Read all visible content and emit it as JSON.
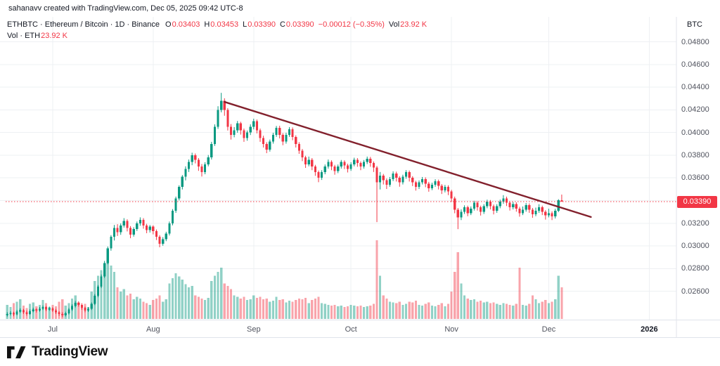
{
  "attribution": "sahanavv created with TradingView.com, Dec 05, 2025 09:42 UTC-8",
  "legend": {
    "title": "ETHBTC · Ethereum / Bitcoin · 1D · Binance",
    "ohlc": [
      {
        "label": "O",
        "value": "0.03403"
      },
      {
        "label": "H",
        "value": "0.03453"
      },
      {
        "label": "L",
        "value": "0.03390"
      },
      {
        "label": "C",
        "value": "0.03390"
      }
    ],
    "change": "−0.00012 (−0.35%)",
    "vol_label": "Vol",
    "vol_value": "23.92 K",
    "row2_label": "Vol · ETH",
    "row2_value": "23.92 K"
  },
  "price_axis": {
    "unit": "BTC"
  },
  "footer": {
    "brand": "TradingView"
  },
  "chart_data": {
    "type": "candlestick",
    "title": "ETHBTC · Ethereum / Bitcoin · 1D · Binance",
    "ylabel": "BTC",
    "grid": true,
    "price_scale": 1e-05,
    "y_min": 0.0235,
    "y_max": 0.0489,
    "total_slots": 206,
    "grid_prices": [
      0.048,
      0.046,
      0.044,
      0.042,
      0.04,
      0.038,
      0.036,
      0.034,
      0.032,
      0.03,
      0.028,
      0.026
    ],
    "axis_labels": [
      {
        "text": "0.04800",
        "price": 0.048
      },
      {
        "text": "0.04600",
        "price": 0.046
      },
      {
        "text": "0.04400",
        "price": 0.044
      },
      {
        "text": "0.04200",
        "price": 0.042
      },
      {
        "text": "0.04000",
        "price": 0.04
      },
      {
        "text": "0.03800",
        "price": 0.038
      },
      {
        "text": "0.03600",
        "price": 0.036
      },
      {
        "text": "0.03200",
        "price": 0.032
      },
      {
        "text": "0.03000",
        "price": 0.03
      },
      {
        "text": "0.02800",
        "price": 0.028
      },
      {
        "text": "0.02600",
        "price": 0.026
      }
    ],
    "x_labels": [
      {
        "label": "Jul",
        "index": 14
      },
      {
        "label": "Aug",
        "index": 45
      },
      {
        "label": "Sep",
        "index": 76
      },
      {
        "label": "Oct",
        "index": 106
      },
      {
        "label": "Nov",
        "index": 137
      },
      {
        "label": "Dec",
        "index": 167
      },
      {
        "label": "2026",
        "index": 198,
        "emph": true
      }
    ],
    "current_price": 0.0339,
    "current_price_label": "0.03390",
    "trendline": {
      "i1": 67,
      "p1": 0.0427,
      "i2": 180,
      "p2": 0.03255
    },
    "colors": {
      "up": "#089981",
      "down": "#f23645",
      "vol_opacity": 0.45,
      "trendline": "#82202c",
      "grid": "#eef0f3",
      "border": "#e0e3eb",
      "price_line": "#f23645",
      "badge_bg": "#f23645",
      "badge_text": "#ffffff"
    },
    "candles": [
      [
        2390,
        2415,
        2378,
        2400,
        18
      ],
      [
        2400,
        2425,
        2388,
        2410,
        15
      ],
      [
        2410,
        2420,
        2380,
        2395,
        20
      ],
      [
        2395,
        2435,
        2388,
        2420,
        22
      ],
      [
        2420,
        2450,
        2410,
        2435,
        25
      ],
      [
        2435,
        2445,
        2400,
        2415,
        17
      ],
      [
        2415,
        2430,
        2385,
        2400,
        14
      ],
      [
        2400,
        2440,
        2393,
        2425,
        19
      ],
      [
        2425,
        2455,
        2415,
        2440,
        21
      ],
      [
        2440,
        2450,
        2413,
        2430,
        16
      ],
      [
        2430,
        2462,
        2420,
        2445,
        18
      ],
      [
        2445,
        2475,
        2435,
        2460,
        24
      ],
      [
        2460,
        2470,
        2425,
        2440,
        20
      ],
      [
        2440,
        2465,
        2428,
        2450,
        15
      ],
      [
        2450,
        2460,
        2418,
        2430,
        18
      ],
      [
        2430,
        2445,
        2400,
        2415,
        16
      ],
      [
        2415,
        2425,
        2383,
        2400,
        22
      ],
      [
        2400,
        2415,
        2372,
        2390,
        25
      ],
      [
        2390,
        2420,
        2378,
        2405,
        17
      ],
      [
        2405,
        2452,
        2395,
        2440,
        20
      ],
      [
        2440,
        2485,
        2428,
        2470,
        26
      ],
      [
        2470,
        2515,
        2458,
        2500,
        30
      ],
      [
        2500,
        2512,
        2465,
        2480,
        21
      ],
      [
        2480,
        2495,
        2438,
        2455,
        18
      ],
      [
        2455,
        2465,
        2415,
        2430,
        19
      ],
      [
        2430,
        2460,
        2418,
        2445,
        15
      ],
      [
        2445,
        2502,
        2435,
        2490,
        35
      ],
      [
        2490,
        2575,
        2478,
        2560,
        48
      ],
      [
        2560,
        2655,
        2548,
        2640,
        55
      ],
      [
        2640,
        2748,
        2628,
        2730,
        62
      ],
      [
        2730,
        2868,
        2718,
        2850,
        70
      ],
      [
        2850,
        2995,
        2838,
        2980,
        75
      ],
      [
        2980,
        3095,
        2958,
        3080,
        68
      ],
      [
        3080,
        3185,
        3048,
        3160,
        60
      ],
      [
        3160,
        3192,
        3088,
        3120,
        40
      ],
      [
        3120,
        3198,
        3098,
        3180,
        35
      ],
      [
        3180,
        3245,
        3162,
        3220,
        38
      ],
      [
        3220,
        3235,
        3128,
        3160,
        30
      ],
      [
        3160,
        3175,
        3068,
        3100,
        32
      ],
      [
        3100,
        3165,
        3082,
        3150,
        25
      ],
      [
        3150,
        3215,
        3132,
        3200,
        28
      ],
      [
        3200,
        3252,
        3178,
        3230,
        26
      ],
      [
        3230,
        3245,
        3152,
        3180,
        22
      ],
      [
        3180,
        3195,
        3112,
        3140,
        20
      ],
      [
        3140,
        3185,
        3118,
        3170,
        18
      ],
      [
        3170,
        3182,
        3102,
        3130,
        24
      ],
      [
        3130,
        3145,
        3052,
        3080,
        26
      ],
      [
        3080,
        3095,
        2988,
        3020,
        30
      ],
      [
        3020,
        3078,
        3002,
        3060,
        22
      ],
      [
        3060,
        3125,
        3042,
        3110,
        25
      ],
      [
        3110,
        3215,
        3092,
        3200,
        45
      ],
      [
        3200,
        3325,
        3182,
        3310,
        52
      ],
      [
        3310,
        3435,
        3292,
        3420,
        58
      ],
      [
        3420,
        3535,
        3402,
        3520,
        54
      ],
      [
        3520,
        3625,
        3498,
        3610,
        50
      ],
      [
        3610,
        3702,
        3578,
        3680,
        44
      ],
      [
        3680,
        3762,
        3652,
        3740,
        40
      ],
      [
        3740,
        3822,
        3712,
        3800,
        42
      ],
      [
        3800,
        3815,
        3728,
        3760,
        30
      ],
      [
        3760,
        3775,
        3662,
        3700,
        28
      ],
      [
        3700,
        3722,
        3612,
        3650,
        26
      ],
      [
        3650,
        3738,
        3632,
        3720,
        24
      ],
      [
        3720,
        3802,
        3702,
        3780,
        27
      ],
      [
        3780,
        3918,
        3762,
        3900,
        48
      ],
      [
        3900,
        4072,
        3882,
        4050,
        55
      ],
      [
        4050,
        4232,
        4032,
        4200,
        60
      ],
      [
        4200,
        4350,
        4178,
        4280,
        65
      ],
      [
        4280,
        4302,
        4148,
        4200,
        45
      ],
      [
        4200,
        4215,
        4018,
        4050,
        42
      ],
      [
        4050,
        4075,
        3938,
        3980,
        38
      ],
      [
        3980,
        4048,
        3958,
        4020,
        30
      ],
      [
        4020,
        4102,
        3998,
        4080,
        28
      ],
      [
        4080,
        4095,
        3982,
        4020,
        26
      ],
      [
        4020,
        4035,
        3918,
        3950,
        28
      ],
      [
        3950,
        4018,
        3928,
        4000,
        24
      ],
      [
        4000,
        4072,
        3978,
        4050,
        25
      ],
      [
        4050,
        4122,
        4028,
        4100,
        30
      ],
      [
        4100,
        4115,
        3992,
        4020,
        27
      ],
      [
        4020,
        4035,
        3918,
        3950,
        28
      ],
      [
        3950,
        3972,
        3868,
        3900,
        25
      ],
      [
        3900,
        3915,
        3818,
        3850,
        26
      ],
      [
        3850,
        3938,
        3832,
        3920,
        22
      ],
      [
        3920,
        3998,
        3902,
        3980,
        23
      ],
      [
        3980,
        4058,
        3962,
        4040,
        28
      ],
      [
        4040,
        4060,
        3948,
        3980,
        24
      ],
      [
        3980,
        3995,
        3888,
        3920,
        25
      ],
      [
        3920,
        3998,
        3902,
        3980,
        21
      ],
      [
        3980,
        4048,
        3962,
        4030,
        23
      ],
      [
        4030,
        4045,
        3932,
        3960,
        22
      ],
      [
        3960,
        3975,
        3868,
        3900,
        24
      ],
      [
        3900,
        3915,
        3812,
        3840,
        26
      ],
      [
        3840,
        3855,
        3748,
        3780,
        25
      ],
      [
        3780,
        3795,
        3688,
        3720,
        27
      ],
      [
        3720,
        3788,
        3702,
        3760,
        20
      ],
      [
        3760,
        3775,
        3668,
        3700,
        24
      ],
      [
        3700,
        3715,
        3618,
        3650,
        26
      ],
      [
        3650,
        3665,
        3562,
        3600,
        28
      ],
      [
        3600,
        3668,
        3582,
        3650,
        20
      ],
      [
        3650,
        3718,
        3632,
        3700,
        19
      ],
      [
        3700,
        3762,
        3682,
        3740,
        18
      ],
      [
        3740,
        3755,
        3668,
        3700,
        17
      ],
      [
        3700,
        3715,
        3628,
        3660,
        18
      ],
      [
        3660,
        3718,
        3642,
        3700,
        16
      ],
      [
        3700,
        3758,
        3682,
        3740,
        17
      ],
      [
        3740,
        3755,
        3678,
        3710,
        15
      ],
      [
        3710,
        3725,
        3648,
        3680,
        16
      ],
      [
        3680,
        3738,
        3662,
        3720,
        18
      ],
      [
        3720,
        3778,
        3702,
        3760,
        17
      ],
      [
        3760,
        3775,
        3698,
        3730,
        16
      ],
      [
        3730,
        3745,
        3668,
        3700,
        17
      ],
      [
        3700,
        3758,
        3682,
        3740,
        15
      ],
      [
        3740,
        3788,
        3722,
        3770,
        16
      ],
      [
        3770,
        3785,
        3698,
        3730,
        17
      ],
      [
        3730,
        3745,
        3652,
        3690,
        19
      ],
      [
        3690,
        3705,
        3210,
        3560,
        100
      ],
      [
        3560,
        3652,
        3498,
        3620,
        55
      ],
      [
        3620,
        3635,
        3542,
        3580,
        30
      ],
      [
        3580,
        3595,
        3502,
        3540,
        26
      ],
      [
        3540,
        3608,
        3522,
        3590,
        22
      ],
      [
        3590,
        3658,
        3572,
        3640,
        21
      ],
      [
        3640,
        3655,
        3568,
        3600,
        20
      ],
      [
        3600,
        3615,
        3522,
        3560,
        22
      ],
      [
        3560,
        3628,
        3542,
        3610,
        18
      ],
      [
        3610,
        3668,
        3592,
        3650,
        19
      ],
      [
        3650,
        3665,
        3568,
        3600,
        22
      ],
      [
        3600,
        3615,
        3528,
        3560,
        21
      ],
      [
        3560,
        3575,
        3488,
        3520,
        23
      ],
      [
        3520,
        3578,
        3502,
        3560,
        18
      ],
      [
        3560,
        3608,
        3542,
        3590,
        17
      ],
      [
        3590,
        3605,
        3518,
        3550,
        19
      ],
      [
        3550,
        3565,
        3478,
        3510,
        21
      ],
      [
        3510,
        3558,
        3492,
        3540,
        17
      ],
      [
        3540,
        3588,
        3522,
        3570,
        16
      ],
      [
        3570,
        3585,
        3498,
        3530,
        18
      ],
      [
        3530,
        3545,
        3458,
        3490,
        20
      ],
      [
        3490,
        3538,
        3472,
        3520,
        16
      ],
      [
        3520,
        3535,
        3448,
        3480,
        19
      ],
      [
        3480,
        3495,
        3388,
        3420,
        35
      ],
      [
        3420,
        3435,
        3288,
        3320,
        60
      ],
      [
        3320,
        3335,
        3148,
        3250,
        85
      ],
      [
        3250,
        3322,
        3228,
        3300,
        45
      ],
      [
        3300,
        3358,
        3282,
        3340,
        30
      ],
      [
        3340,
        3355,
        3262,
        3290,
        26
      ],
      [
        3290,
        3348,
        3272,
        3330,
        24
      ],
      [
        3330,
        3398,
        3312,
        3380,
        25
      ],
      [
        3380,
        3395,
        3312,
        3340,
        22
      ],
      [
        3340,
        3355,
        3268,
        3300,
        23
      ],
      [
        3300,
        3368,
        3282,
        3350,
        21
      ],
      [
        3350,
        3408,
        3332,
        3390,
        22
      ],
      [
        3390,
        3405,
        3322,
        3350,
        20
      ],
      [
        3350,
        3365,
        3278,
        3310,
        21
      ],
      [
        3310,
        3368,
        3292,
        3350,
        19
      ],
      [
        3350,
        3408,
        3332,
        3390,
        18
      ],
      [
        3390,
        3448,
        3372,
        3420,
        20
      ],
      [
        3420,
        3435,
        3352,
        3380,
        19
      ],
      [
        3380,
        3395,
        3312,
        3340,
        18
      ],
      [
        3340,
        3388,
        3322,
        3370,
        17
      ],
      [
        3370,
        3385,
        3302,
        3330,
        19
      ],
      [
        3330,
        3345,
        3258,
        3290,
        65
      ],
      [
        3290,
        3348,
        3272,
        3320,
        18
      ],
      [
        3320,
        3378,
        3302,
        3360,
        17
      ],
      [
        3360,
        3375,
        3292,
        3320,
        19
      ],
      [
        3320,
        3335,
        3248,
        3280,
        30
      ],
      [
        3280,
        3338,
        3262,
        3310,
        25
      ],
      [
        3310,
        3368,
        3292,
        3340,
        20
      ],
      [
        3340,
        3355,
        3272,
        3300,
        22
      ],
      [
        3300,
        3315,
        3232,
        3270,
        24
      ],
      [
        3270,
        3328,
        3252,
        3290,
        20
      ],
      [
        3290,
        3305,
        3228,
        3260,
        22
      ],
      [
        3260,
        3328,
        3242,
        3310,
        25
      ],
      [
        3310,
        3412,
        3298,
        3403,
        55
      ],
      [
        3403,
        3453,
        3390,
        3390,
        40
      ]
    ]
  }
}
